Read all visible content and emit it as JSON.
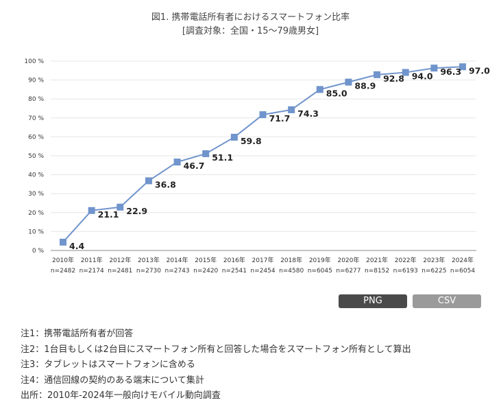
{
  "chart_data": {
    "type": "line",
    "title": "図1. 携帯電話所有者におけるスマートフォン比率",
    "subtitle": "[調査対象：全国・15〜79歳男女]",
    "categories": [
      "2010年",
      "2011年",
      "2012年",
      "2013年",
      "2014年",
      "2015年",
      "2016年",
      "2017年",
      "2018年",
      "2019年",
      "2020年",
      "2021年",
      "2022年",
      "2023年",
      "2024年"
    ],
    "sample_sizes": [
      "n=2482",
      "n=2174",
      "n=2481",
      "n=2730",
      "n=2743",
      "n=2420",
      "n=2541",
      "n=2454",
      "n=4580",
      "n=6045",
      "n=6277",
      "n=8152",
      "n=6193",
      "n=6225",
      "n=6054"
    ],
    "series": [
      {
        "values": [
          4.4,
          21.1,
          22.9,
          36.8,
          46.7,
          51.1,
          59.8,
          71.7,
          74.3,
          85.0,
          88.9,
          92.8,
          94.0,
          96.3,
          97.0
        ],
        "labels": [
          "4.4",
          "21.1",
          "22.9",
          "36.8",
          "46.7",
          "51.1",
          "59.8",
          "71.7",
          "74.3",
          "85.0",
          "88.9",
          "92.8",
          "94.0",
          "96.3",
          "97.0"
        ],
        "color": "#7094cc"
      }
    ],
    "yticks": [
      "0 %",
      "10 %",
      "20 %",
      "30 %",
      "40 %",
      "50 %",
      "60 %",
      "70 %",
      "80 %",
      "90 %",
      "100 %"
    ],
    "ylim": [
      0,
      100
    ],
    "grid": true,
    "legend": "none"
  },
  "buttons": {
    "png": "PNG",
    "csv": "CSV"
  },
  "notes": [
    "注1：携帯電話所有者が回答",
    "注2：1台目もしくは2台目にスマートフォン所有と回答した場合をスマートフォン所有として算出",
    "注3：タブレットはスマートフォンに含める",
    "注4：通信回線の契約のある端末について集計",
    "出所：2010年-2024年一般向けモバイル動向調査"
  ]
}
